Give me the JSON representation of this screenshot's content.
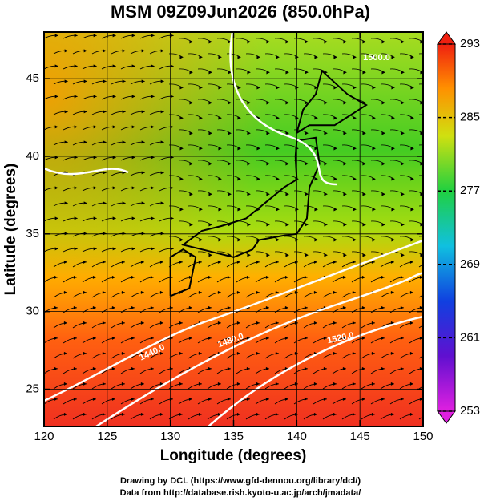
{
  "title": "MSM 09Z09Jun2026 (850.0hPa)",
  "x_axis": {
    "label": "Longitude (degrees)",
    "lim": [
      120,
      150
    ],
    "ticks": [
      120,
      125,
      130,
      135,
      140,
      145,
      150
    ]
  },
  "y_axis": {
    "label": "Latitude  (degrees)",
    "lim": [
      22.6,
      48
    ],
    "ticks": [
      25,
      30,
      35,
      40,
      45
    ]
  },
  "colorbar": {
    "lim": [
      253,
      293
    ],
    "ticks": [
      253,
      261,
      269,
      277,
      285,
      293
    ]
  },
  "contour_labels": [
    "1440.0",
    "1480.0",
    "1520.0",
    "1500.0"
  ],
  "credits": [
    "Drawing by DCL (https://www.gfd-dennou.org/library/dcl/)",
    "Data from http://database.rish.kyoto-u.ac.jp/arch/jmadata/"
  ]
}
